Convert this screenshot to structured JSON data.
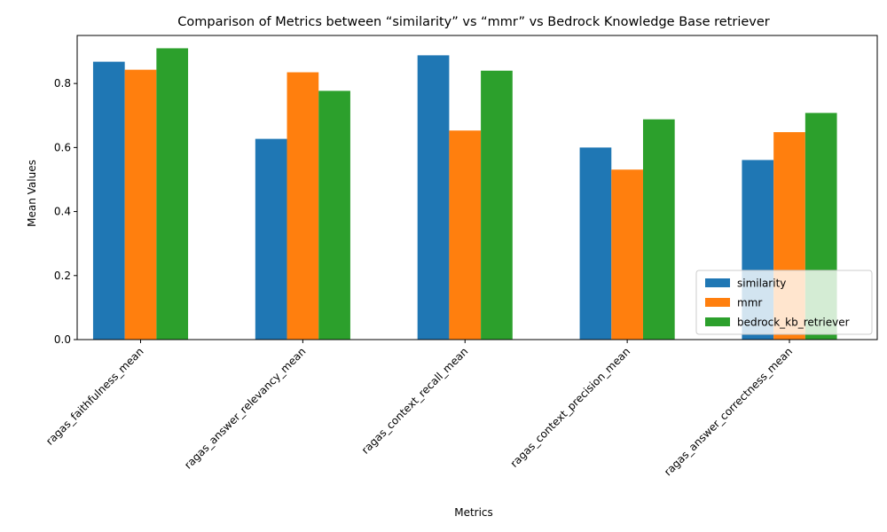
{
  "chart_data": {
    "type": "bar",
    "title": "Comparison of Metrics between “similarity” vs “mmr” vs Bedrock Knowledge Base retriever",
    "xlabel": "Metrics",
    "ylabel": "Mean Values",
    "ylim": [
      0,
      0.95
    ],
    "yticks": [
      0.0,
      0.2,
      0.4,
      0.6,
      0.8
    ],
    "ytick_labels": [
      "0.0",
      "0.2",
      "0.4",
      "0.6",
      "0.8"
    ],
    "categories": [
      "ragas_faithfulness_mean",
      "ragas_answer_relevancy_mean",
      "ragas_context_recall_mean",
      "ragas_context_precision_mean",
      "ragas_answer_correctness_mean"
    ],
    "series": [
      {
        "name": "similarity",
        "color": "#1f77b4",
        "values": [
          0.868,
          0.627,
          0.888,
          0.6,
          0.561
        ]
      },
      {
        "name": "mmr",
        "color": "#ff7f0e",
        "values": [
          0.843,
          0.835,
          0.653,
          0.531,
          0.648
        ]
      },
      {
        "name": "bedrock_kb_retriever",
        "color": "#2ca02c",
        "values": [
          0.91,
          0.777,
          0.84,
          0.688,
          0.708
        ]
      }
    ],
    "legend_position": "lower-right",
    "grid": false
  }
}
